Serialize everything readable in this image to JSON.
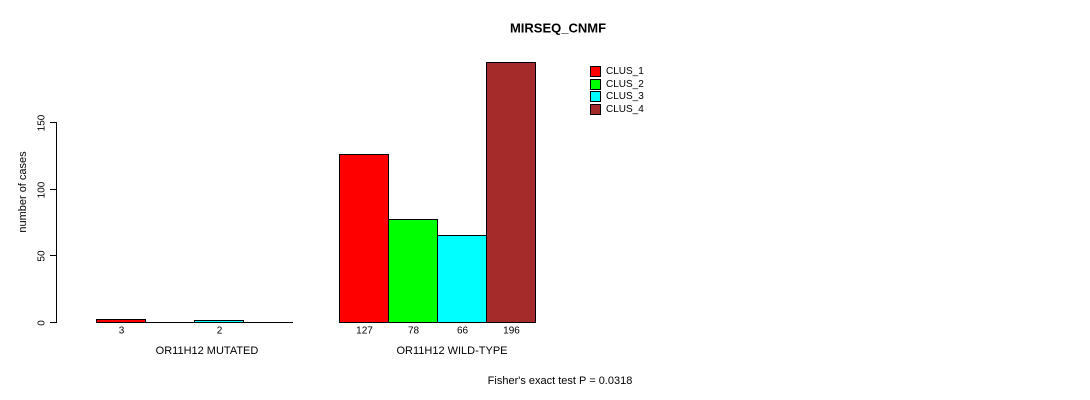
{
  "chart_data": {
    "type": "bar",
    "title": "MIRSEQ_CNMF",
    "ylabel": "number of cases",
    "xlabel": "",
    "ylim": [
      0,
      150
    ],
    "yticks": [
      0,
      50,
      100,
      150
    ],
    "grid": false,
    "legend_position": "top-right-inside",
    "legend": [
      {
        "name": "CLUS_1",
        "color": "#ff0000"
      },
      {
        "name": "CLUS_2",
        "color": "#00ff00"
      },
      {
        "name": "CLUS_3",
        "color": "#00ffff"
      },
      {
        "name": "CLUS_4",
        "color": "#a52a2a"
      }
    ],
    "categories": [
      "OR11H12 MUTATED",
      "OR11H12 WILD-TYPE"
    ],
    "series": [
      {
        "name": "CLUS_1",
        "values": [
          3,
          127
        ]
      },
      {
        "name": "CLUS_2",
        "values": [
          0,
          78
        ]
      },
      {
        "name": "CLUS_3",
        "values": [
          2,
          66
        ]
      },
      {
        "name": "CLUS_4",
        "values": [
          0,
          196
        ]
      }
    ],
    "bar_value_labels": [
      [
        "3",
        "",
        "2",
        ""
      ],
      [
        "127",
        "78",
        "66",
        "196"
      ]
    ],
    "footnote": "Fisher's exact test P = 0.0318"
  }
}
